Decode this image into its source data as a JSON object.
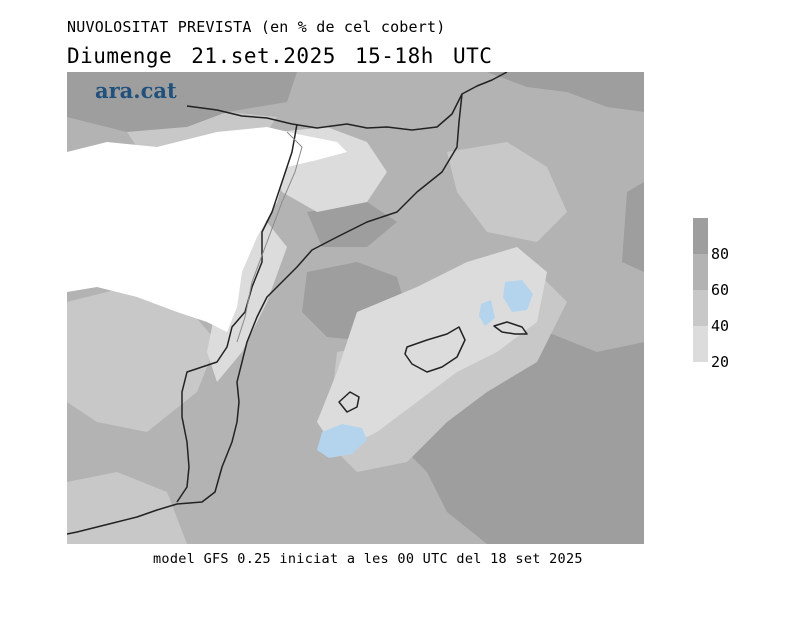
{
  "header": {
    "title": "NUVOLOSITAT PREVISTA (en % de cel cobert)",
    "subtitle": "Diumenge  21.set.2025 15-18h UTC"
  },
  "map": {
    "brand": "ara.cat"
  },
  "legend": {
    "bins": [
      {
        "range": "80-100",
        "color": "#9e9e9e"
      },
      {
        "range": "60-80",
        "color": "#b3b3b3"
      },
      {
        "range": "40-60",
        "color": "#c8c8c8"
      },
      {
        "range": "20-40",
        "color": "#dcdcdc"
      }
    ],
    "labels": [
      "80",
      "60",
      "40",
      "20"
    ],
    "low_color": "#ffffff",
    "clear_highlight_color": "#b4d4ee"
  },
  "footer": {
    "caption": "model GFS 0.25 iniciat a les 00 UTC del 18 set 2025"
  }
}
